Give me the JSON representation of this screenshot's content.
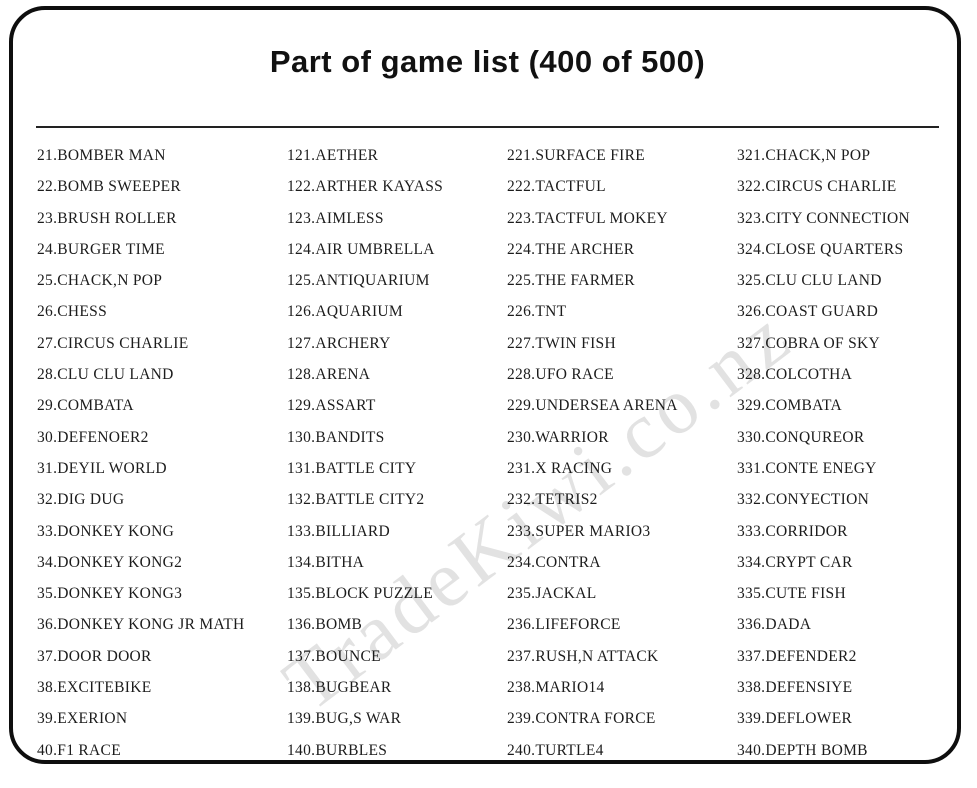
{
  "title": "Part of game list (400 of 500)",
  "watermark": "TradeKiwi.co.nz",
  "colors": {
    "border": "#0e0e0e",
    "text": "#1c1c1c",
    "watermark": "#e2e2e2"
  },
  "columns": [
    {
      "items": [
        "21.BOMBER MAN",
        "22.BOMB SWEEPER",
        "23.BRUSH ROLLER",
        "24.BURGER TIME",
        "25.CHACK,N POP",
        "26.CHESS",
        "27.CIRCUS CHARLIE",
        "28.CLU CLU LAND",
        "29.COMBATA",
        "30.DEFENOER2",
        "31.DEYIL WORLD",
        "32.DIG DUG",
        "33.DONKEY KONG",
        "34.DONKEY KONG2",
        "35.DONKEY KONG3",
        "36.DONKEY KONG JR MATH",
        "37.DOOR DOOR",
        "38.EXCITEBIKE",
        "39.EXERION",
        "40.F1 RACE"
      ]
    },
    {
      "items": [
        "121.AETHER",
        "122.ARTHER KAYASS",
        "123.AIMLESS",
        "124.AIR UMBRELLA",
        "125.ANTIQUARIUM",
        "126.AQUARIUM",
        "127.ARCHERY",
        "128.ARENA",
        "129.ASSART",
        "130.BANDITS",
        "131.BATTLE CITY",
        "132.BATTLE CITY2",
        "133.BILLIARD",
        "134.BITHA",
        "135.BLOCK PUZZLE",
        "136.BOMB",
        "137.BOUNCE",
        "138.BUGBEAR",
        "139.BUG,S WAR",
        "140.BURBLES"
      ]
    },
    {
      "items": [
        "221.SURFACE FIRE",
        "222.TACTFUL",
        "223.TACTFUL MOKEY",
        "224.THE ARCHER",
        "225.THE FARMER",
        "226.TNT",
        "227.TWIN FISH",
        "228.UFO RACE",
        "229.UNDERSEA ARENA",
        "230.WARRIOR",
        "231.X RACING",
        "232.TETRIS2",
        "233.SUPER MARIO3",
        "234.CONTRA",
        "235.JACKAL",
        "236.LIFEFORCE",
        "237.RUSH,N ATTACK",
        "238.MARIO14",
        "239.CONTRA FORCE",
        "240.TURTLE4"
      ]
    },
    {
      "items": [
        "321.CHACK,N POP",
        "322.CIRCUS CHARLIE",
        "323.CITY CONNECTION",
        "324.CLOSE QUARTERS",
        "325.CLU CLU LAND",
        "326.COAST GUARD",
        "327.COBRA OF SKY",
        "328.COLCOTHA",
        "329.COMBATA",
        "330.CONQUREOR",
        "331.CONTE ENEGY",
        "332.CONYECTION",
        "333.CORRIDOR",
        "334.CRYPT CAR",
        "335.CUTE FISH",
        "336.DADA",
        "337.DEFENDER2",
        "338.DEFENSIYE",
        "339.DEFLOWER",
        "340.DEPTH BOMB"
      ]
    }
  ]
}
